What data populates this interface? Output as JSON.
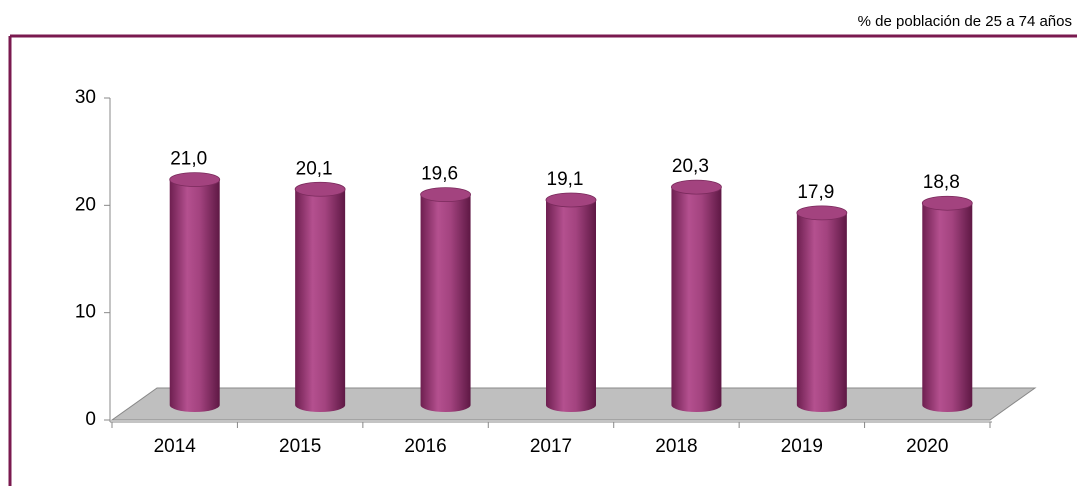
{
  "chart_data": {
    "type": "bar",
    "subtitle": "% de población de 25 a 74 años",
    "categories": [
      "2014",
      "2015",
      "2016",
      "2017",
      "2018",
      "2019",
      "2020"
    ],
    "values": [
      21.0,
      20.1,
      19.6,
      19.1,
      20.3,
      17.9,
      18.8
    ],
    "value_labels": [
      "21,0",
      "20,1",
      "19,6",
      "19,1",
      "20,3",
      "17,9",
      "18,8"
    ],
    "color": "#a3437f",
    "ylim": [
      0,
      30
    ],
    "yticks": [
      0,
      10,
      20,
      30
    ],
    "grid": false
  }
}
